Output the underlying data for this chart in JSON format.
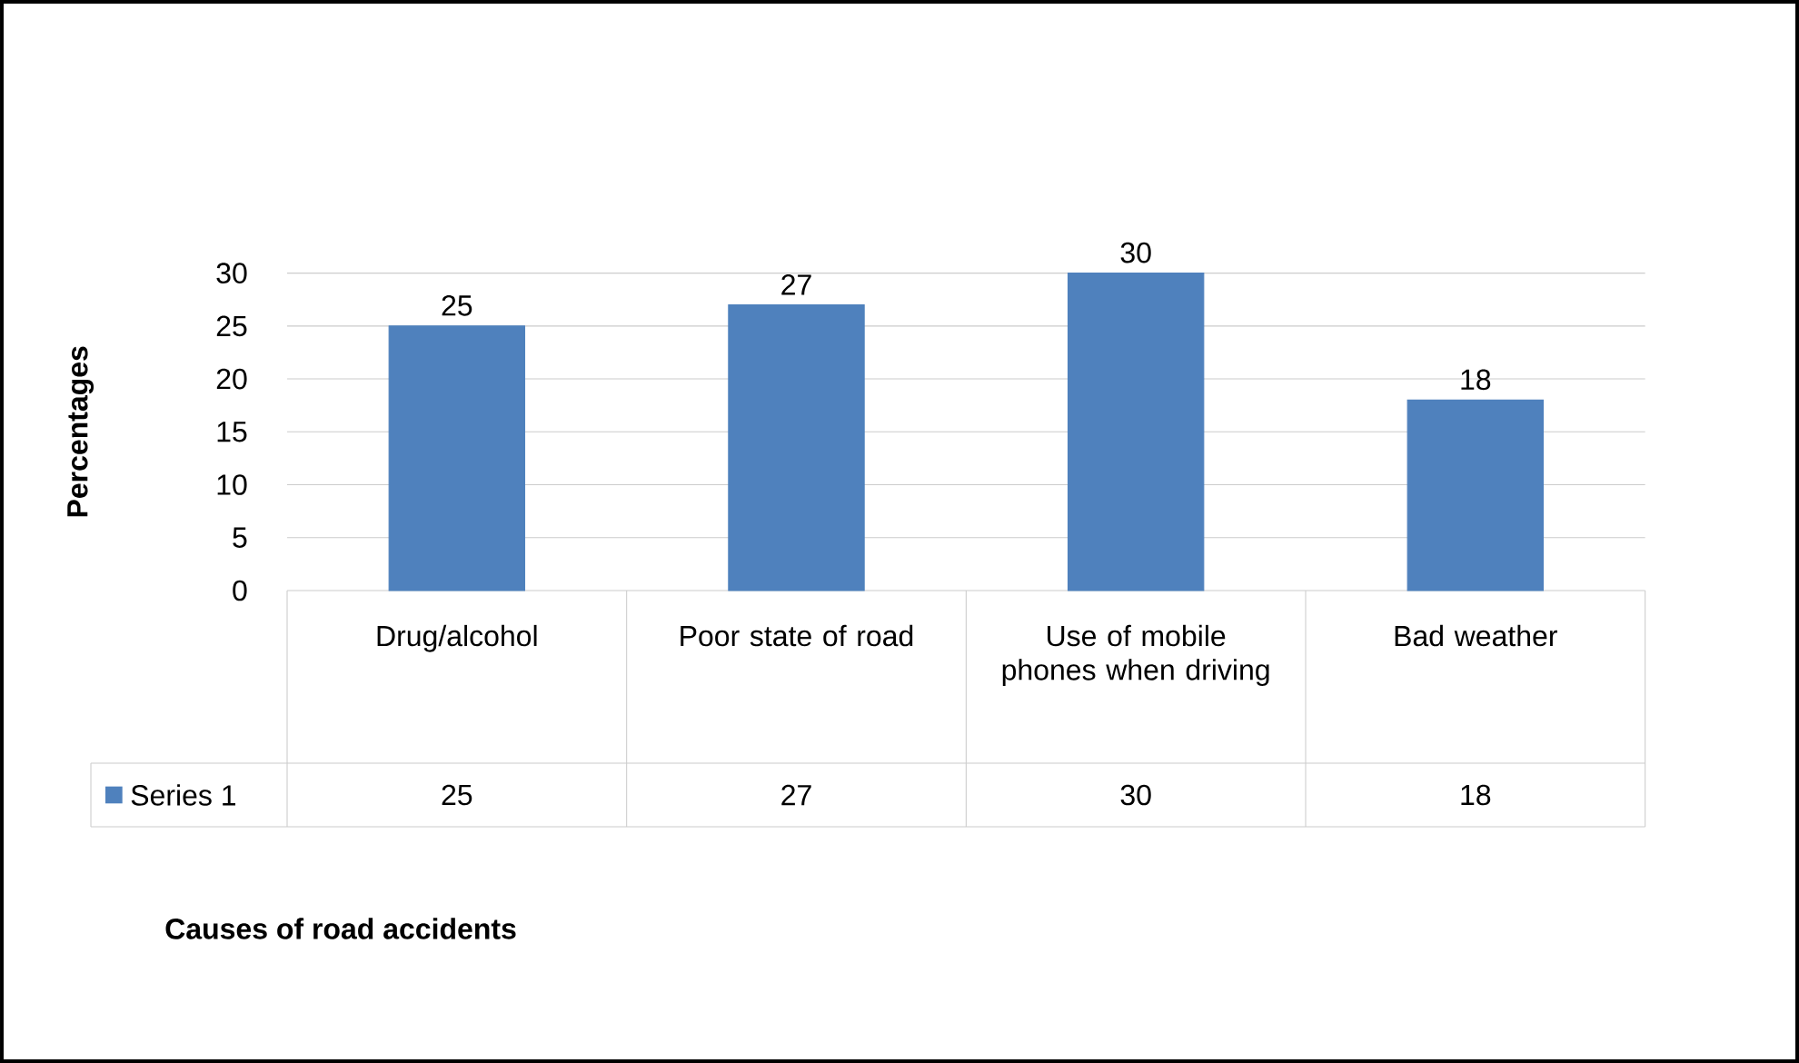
{
  "chart_data": {
    "type": "bar",
    "ylabel": "Percentages",
    "annotations": [
      "25",
      "27",
      "30",
      "18",
      "Causes of road accidents"
    ],
    "categories": [
      "Drug/alcohol",
      "Poor state of road",
      "Use of mobile phones when driving",
      "Bad weather"
    ],
    "series": [
      {
        "name": "Series 1",
        "color": "#4f81bd",
        "values": [
          25,
          27,
          30,
          18
        ],
        "value_labels": [
          "25",
          "27",
          "30",
          "18"
        ]
      }
    ],
    "ylim": [
      0,
      30
    ],
    "yticks": [
      0,
      5,
      10,
      15,
      20,
      25,
      30
    ],
    "grid": "y",
    "legend": "bottom"
  }
}
